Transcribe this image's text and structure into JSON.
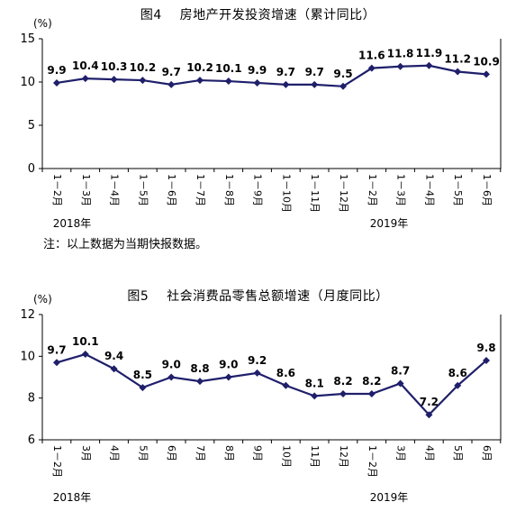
{
  "chart_data": [
    {
      "type": "line",
      "title": "图4    房地产开发投资增速（累计同比）",
      "unit": "(%)",
      "x": [
        "1－2月",
        "1－3月",
        "1－4月",
        "1－5月",
        "1－6月",
        "1－7月",
        "1－8月",
        "1－9月",
        "1－10月",
        "1－11月",
        "1－12月",
        "1－2月",
        "1－3月",
        "1－4月",
        "1－5月",
        "1－6月"
      ],
      "year_labels": [
        "2018年",
        "2019年"
      ],
      "series": [
        {
          "values": [
            9.9,
            10.4,
            10.3,
            10.2,
            9.7,
            10.2,
            10.1,
            9.9,
            9.7,
            9.7,
            9.5,
            11.6,
            11.8,
            11.9,
            11.2,
            10.9
          ]
        }
      ],
      "data_labels": [
        "9.9",
        "10.4",
        "10.3",
        "10.2",
        "9.7",
        "10.2",
        "10.1",
        "9.9",
        "9.7",
        "9.7",
        "9.5",
        "11.6",
        "11.8",
        "11.9",
        "11.2",
        "10.9"
      ],
      "yticks": [
        "0",
        "5",
        "10",
        "15"
      ],
      "ylim": [
        0,
        15
      ],
      "note": "注：以上数据为当期快报数据。",
      "color": "#1f1f6b"
    },
    {
      "type": "line",
      "title": "图5    社会消费品零售总额增速（月度同比）",
      "unit": "(%)",
      "x": [
        "1－2月",
        "3月",
        "4月",
        "5月",
        "6月",
        "7月",
        "8月",
        "9月",
        "10月",
        "11月",
        "12月",
        "1－2月",
        "3月",
        "4月",
        "5月",
        "6月"
      ],
      "year_labels": [
        "2018年",
        "2019年"
      ],
      "series": [
        {
          "values": [
            9.7,
            10.1,
            9.4,
            8.5,
            9.0,
            8.8,
            9.0,
            9.2,
            8.6,
            8.1,
            8.2,
            8.2,
            8.7,
            7.2,
            8.6,
            9.8
          ]
        }
      ],
      "data_labels": [
        "9.7",
        "10.1",
        "9.4",
        "8.5",
        "9.0",
        "8.8",
        "9.0",
        "9.2",
        "8.6",
        "8.1",
        "8.2",
        "8.2",
        "8.7",
        "7.2",
        "8.6",
        "9.8"
      ],
      "yticks": [
        "6",
        "8",
        "10",
        "12"
      ],
      "ylim": [
        6,
        12
      ],
      "color": "#1f1f6b"
    }
  ]
}
